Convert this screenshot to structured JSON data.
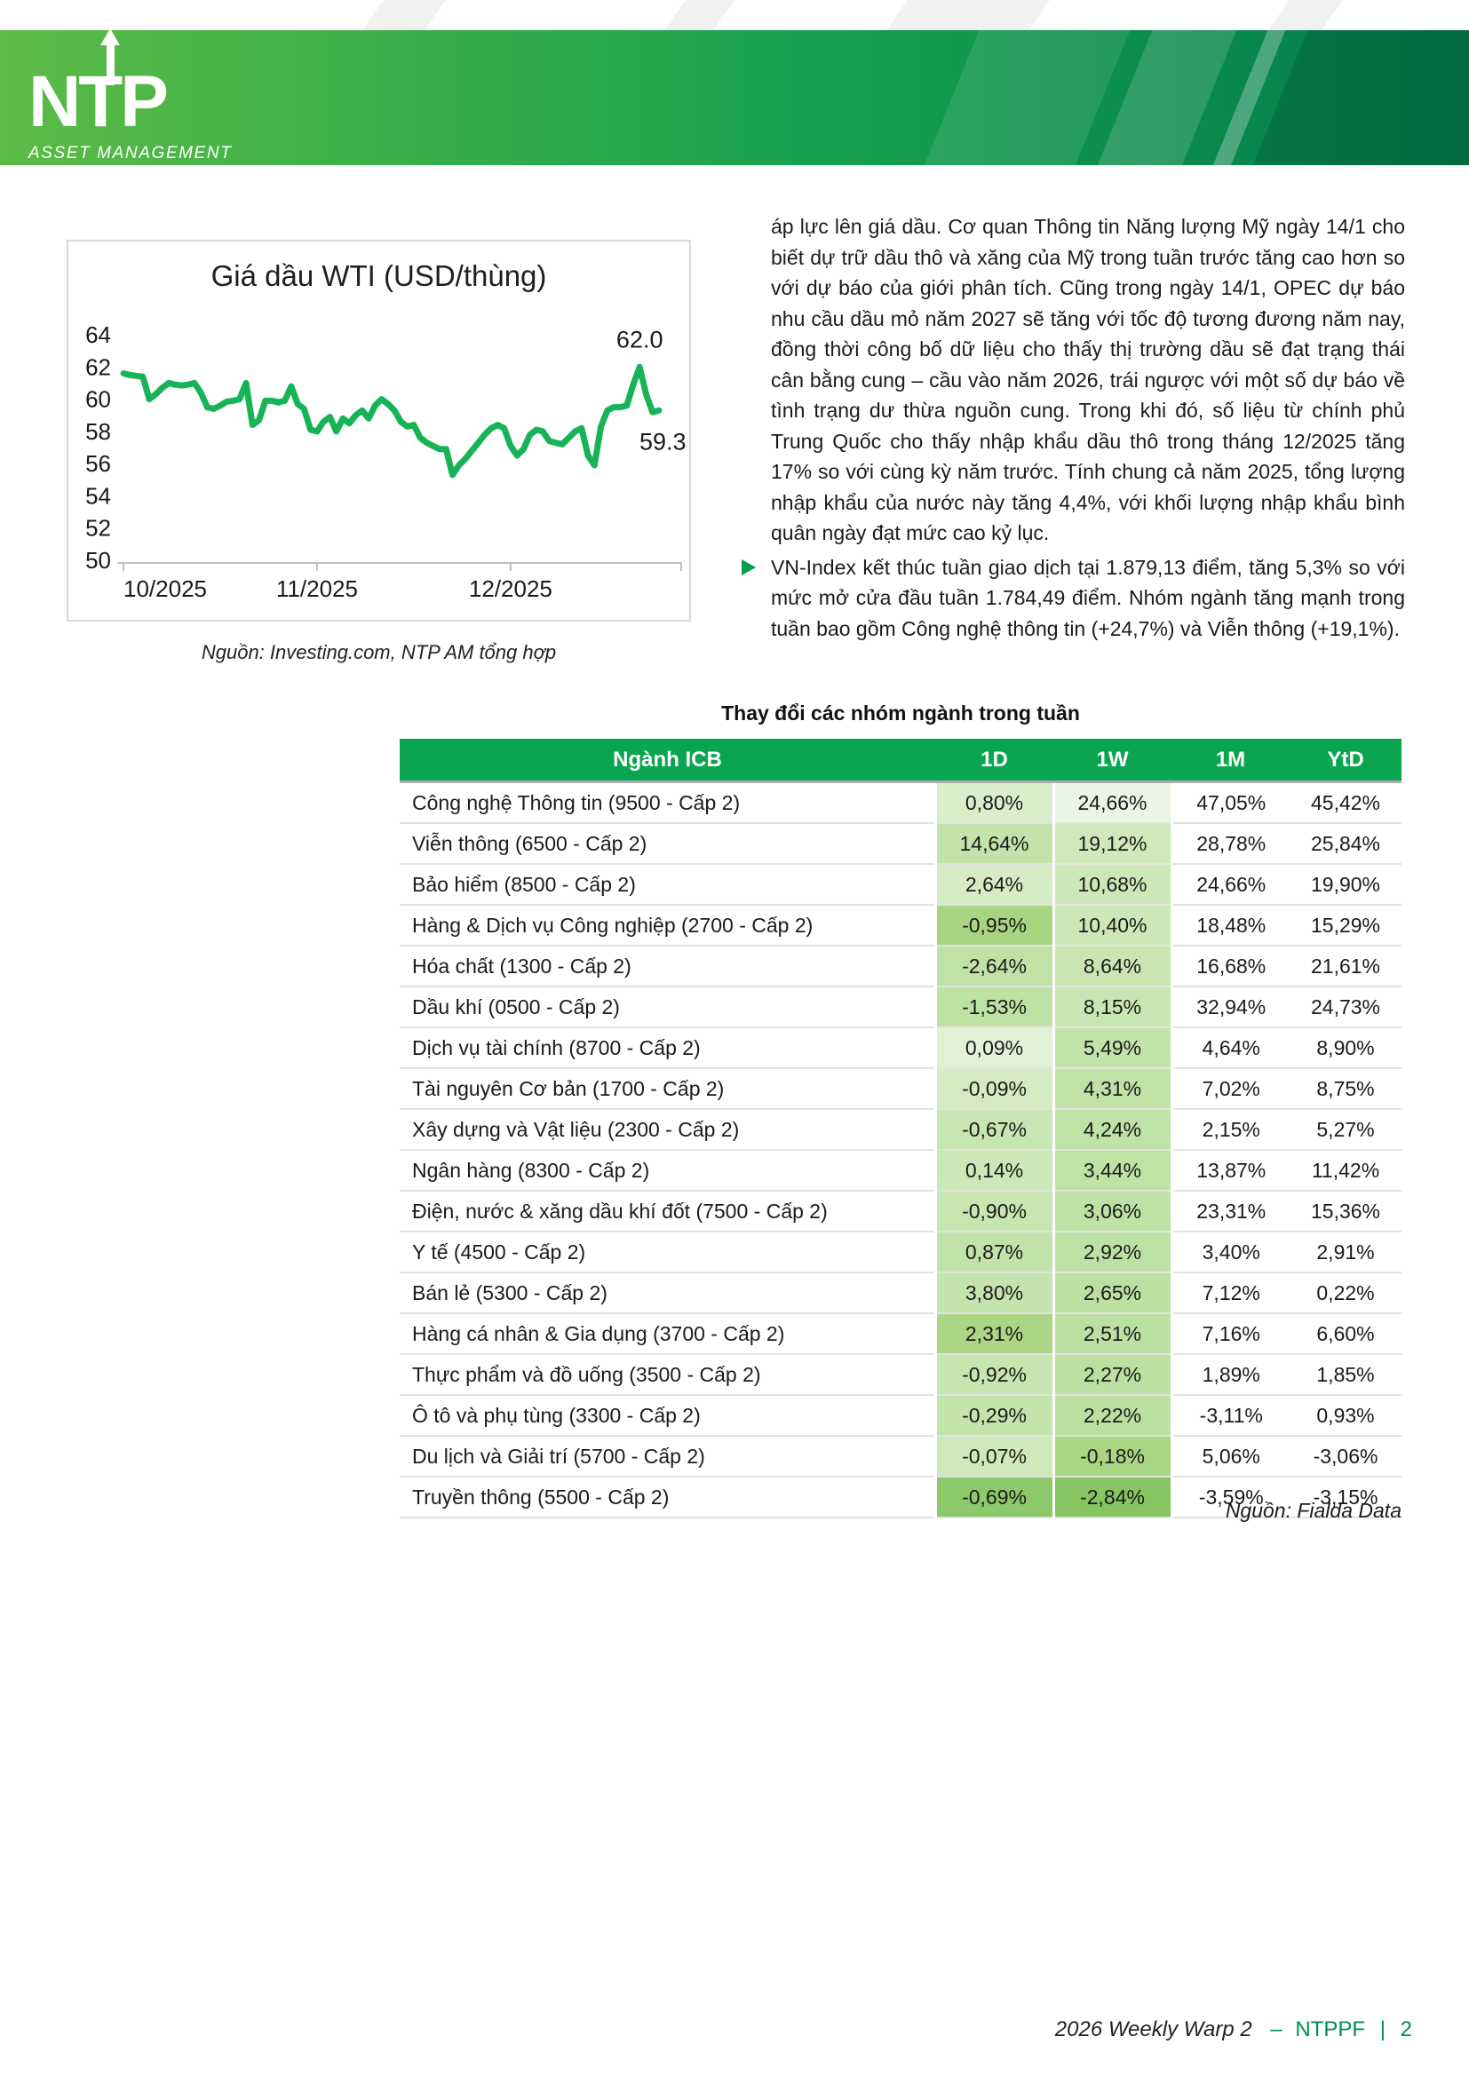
{
  "header": {
    "logo_text": "NTP",
    "logo_subtext": "ASSET MANAGEMENT",
    "banner_green_left": "#5cbb45",
    "banner_green_mid": "#17a14f",
    "banner_green_right": "#017a4a"
  },
  "chart_data": {
    "type": "line",
    "title": "Giá dầu WTI (USD/thùng)",
    "series": [
      {
        "name": "WTI",
        "values": [
          61.6,
          61.5,
          61.45,
          61.4,
          60.0,
          60.3,
          60.7,
          61.0,
          60.9,
          60.85,
          60.9,
          61.0,
          60.4,
          59.5,
          59.4,
          59.6,
          59.85,
          59.9,
          60.0,
          61.0,
          58.4,
          58.7,
          59.9,
          59.9,
          59.8,
          59.9,
          60.8,
          59.7,
          59.4,
          58.1,
          58.0,
          58.6,
          58.9,
          58.0,
          58.8,
          58.5,
          59.0,
          59.3,
          58.8,
          59.6,
          60.0,
          59.7,
          59.3,
          58.6,
          58.3,
          58.4,
          57.6,
          57.3,
          57.1,
          56.9,
          56.9,
          55.3,
          55.9,
          56.3,
          56.8,
          57.3,
          57.8,
          58.2,
          58.4,
          58.2,
          57.1,
          56.5,
          56.9,
          57.8,
          58.1,
          58.0,
          57.4,
          57.3,
          57.2,
          57.6,
          58.0,
          58.2,
          56.5,
          55.9,
          58.3,
          59.3,
          59.5,
          59.5,
          59.6,
          60.9,
          62.0,
          60.3,
          59.2,
          59.3
        ]
      }
    ],
    "x_tick_labels": [
      "10/2025",
      "11/2025",
      "12/2025"
    ],
    "x_tick_indices": [
      0,
      30,
      60
    ],
    "y_ticks": [
      50,
      52,
      54,
      56,
      58,
      60,
      62,
      64
    ],
    "ylim": [
      50,
      64
    ],
    "grid": false,
    "legend": "none",
    "line_color": "#17b357",
    "peak_label": "62.0",
    "last_label": "59.3",
    "source": "Nguồn: Investing.com, NTP AM tổng hợp"
  },
  "article": {
    "paragraph1": "áp lực lên giá dầu. Cơ quan Thông tin Năng lượng Mỹ ngày 14/1 cho biết dự trữ dầu thô và xăng của Mỹ trong tuần trước tăng cao hơn so với dự báo của giới phân tích. Cũng trong ngày 14/1, OPEC dự báo nhu cầu dầu mỏ năm 2027 sẽ tăng với tốc độ tương đương năm nay, đồng thời công bố dữ liệu cho thấy thị trường dầu sẽ đạt trạng thái cân bằng cung – cầu vào năm 2026, trái ngược với một số dự báo về tình trạng dư thừa nguồn cung. Trong khi đó, số liệu từ chính phủ Trung Quốc cho thấy nhập khẩu dầu thô trong tháng 12/2025 tăng 17% so với cùng kỳ năm trước. Tính chung cả năm 2025, tổng lượng nhập khẩu của nước này tăng 4,4%, với khối lượng nhập khẩu bình quân ngày đạt mức cao kỷ lục.",
    "bullet": "VN-Index kết thúc tuần giao dịch tại 1.879,13 điểm, tăng 5,3% so với mức mở cửa đầu tuần 1.784,49 điểm. Nhóm ngành tăng mạnh trong tuần bao gồm Công nghệ thông tin (+24,7%) và Viễn thông (+19,1%)."
  },
  "table": {
    "title": "Thay đổi các nhóm ngành trong tuần",
    "headers": [
      "Ngành ICB",
      "1D",
      "1W",
      "1M",
      "YtD"
    ],
    "header_bg": "#0aa551",
    "rows": [
      {
        "name": "Công nghệ Thông tin (9500 - Cấp 2)",
        "d1": "0,80%",
        "d1_bg": "#d9eecb",
        "w1": "24,66%",
        "w1_bg": "#ebf5e4",
        "m1": "47,05%",
        "ytd": "45,42%"
      },
      {
        "name": "Viễn thông (6500 - Cấp 2)",
        "d1": "14,64%",
        "d1_bg": "#c3e3aa",
        "w1": "19,12%",
        "w1_bg": "#d0e9bb",
        "m1": "28,78%",
        "ytd": "25,84%"
      },
      {
        "name": "Bảo hiểm (8500 - Cấp 2)",
        "d1": "2,64%",
        "d1_bg": "#d6ecc6",
        "w1": "10,68%",
        "w1_bg": "#cde8b7",
        "m1": "24,66%",
        "ytd": "19,90%"
      },
      {
        "name": "Hàng & Dịch vụ Công nghiệp (2700 - Cấp 2)",
        "d1": "-0,95%",
        "d1_bg": "#a9d583",
        "w1": "10,40%",
        "w1_bg": "#cde8b7",
        "m1": "18,48%",
        "ytd": "15,29%"
      },
      {
        "name": "Hóa chất (1300 - Cấp 2)",
        "d1": "-2,64%",
        "d1_bg": "#c0e2a7",
        "w1": "8,64%",
        "w1_bg": "#c9e6b2",
        "m1": "16,68%",
        "ytd": "21,61%"
      },
      {
        "name": "Dầu khí (0500 - Cấp 2)",
        "d1": "-1,53%",
        "d1_bg": "#bee1a4",
        "w1": "8,15%",
        "w1_bg": "#c8e6b1",
        "m1": "32,94%",
        "ytd": "24,73%"
      },
      {
        "name": "Dịch vụ tài chính (8700 - Cấp 2)",
        "d1": "0,09%",
        "d1_bg": "#e1f1d7",
        "w1": "5,49%",
        "w1_bg": "#c2e3a9",
        "m1": "4,64%",
        "ytd": "8,90%"
      },
      {
        "name": "Tài nguyên Cơ bản (1700 - Cấp 2)",
        "d1": "-0,09%",
        "d1_bg": "#d4ebc2",
        "w1": "4,31%",
        "w1_bg": "#c0e2a7",
        "m1": "7,02%",
        "ytd": "8,75%"
      },
      {
        "name": "Xây dựng và Vật liệu (2300 - Cấp 2)",
        "d1": "-0,67%",
        "d1_bg": "#c8e6b1",
        "w1": "4,24%",
        "w1_bg": "#bfe2a6",
        "m1": "2,15%",
        "ytd": "5,27%"
      },
      {
        "name": "Ngân hàng (8300 - Cấp 2)",
        "d1": "0,14%",
        "d1_bg": "#cce8b6",
        "w1": "3,44%",
        "w1_bg": "#bfe2a5",
        "m1": "13,87%",
        "ytd": "11,42%"
      },
      {
        "name": "Điện, nước & xăng dầu khí đốt (7500 - Cấp 2)",
        "d1": "-0,90%",
        "d1_bg": "#c8e6b0",
        "w1": "3,06%",
        "w1_bg": "#bee1a5",
        "m1": "23,31%",
        "ytd": "15,36%"
      },
      {
        "name": "Y tế (4500 - Cấp 2)",
        "d1": "0,87%",
        "d1_bg": "#c1e2a8",
        "w1": "2,92%",
        "w1_bg": "#bde1a4",
        "m1": "3,40%",
        "ytd": "2,91%"
      },
      {
        "name": "Bán lẻ (5300 - Cấp 2)",
        "d1": "3,80%",
        "d1_bg": "#c5e4ad",
        "w1": "2,65%",
        "w1_bg": "#bce0a2",
        "m1": "7,12%",
        "ytd": "0,22%"
      },
      {
        "name": "Hàng cá nhân & Gia dụng (3700 - Cấp 2)",
        "d1": "2,31%",
        "d1_bg": "#acd685",
        "w1": "2,51%",
        "w1_bg": "#bce0a2",
        "m1": "7,16%",
        "ytd": "6,60%"
      },
      {
        "name": "Thực phẩm và đồ uống (3500 - Cấp 2)",
        "d1": "-0,92%",
        "d1_bg": "#c7e5af",
        "w1": "2,27%",
        "w1_bg": "#bbe0a1",
        "m1": "1,89%",
        "ytd": "1,85%"
      },
      {
        "name": "Ô tô và phụ tùng (3300 - Cấp 2)",
        "d1": "-0,29%",
        "d1_bg": "#c4e4ac",
        "w1": "2,22%",
        "w1_bg": "#bbe0a1",
        "m1": "-3,11%",
        "ytd": "0,93%"
      },
      {
        "name": "Du lịch và Giải trí (5700 - Cấp 2)",
        "d1": "-0,07%",
        "d1_bg": "#d0e9bb",
        "w1": "-0,18%",
        "w1_bg": "#aad583",
        "m1": "5,06%",
        "ytd": "-3,06%"
      },
      {
        "name": "Truyền thông (5500 - Cấp 2)",
        "d1": "-0,69%",
        "d1_bg": "#8cc96a",
        "w1": "-2,84%",
        "w1_bg": "#87c562",
        "m1": "-3,59%",
        "ytd": "-3,15%"
      }
    ],
    "source": "Nguồn: Fialda Data"
  },
  "footer": {
    "title": "2026 Weekly Warp 2",
    "dash": "–",
    "fund": "NTPPF",
    "separator": "|",
    "page": "2",
    "accent": "#008f4f"
  }
}
